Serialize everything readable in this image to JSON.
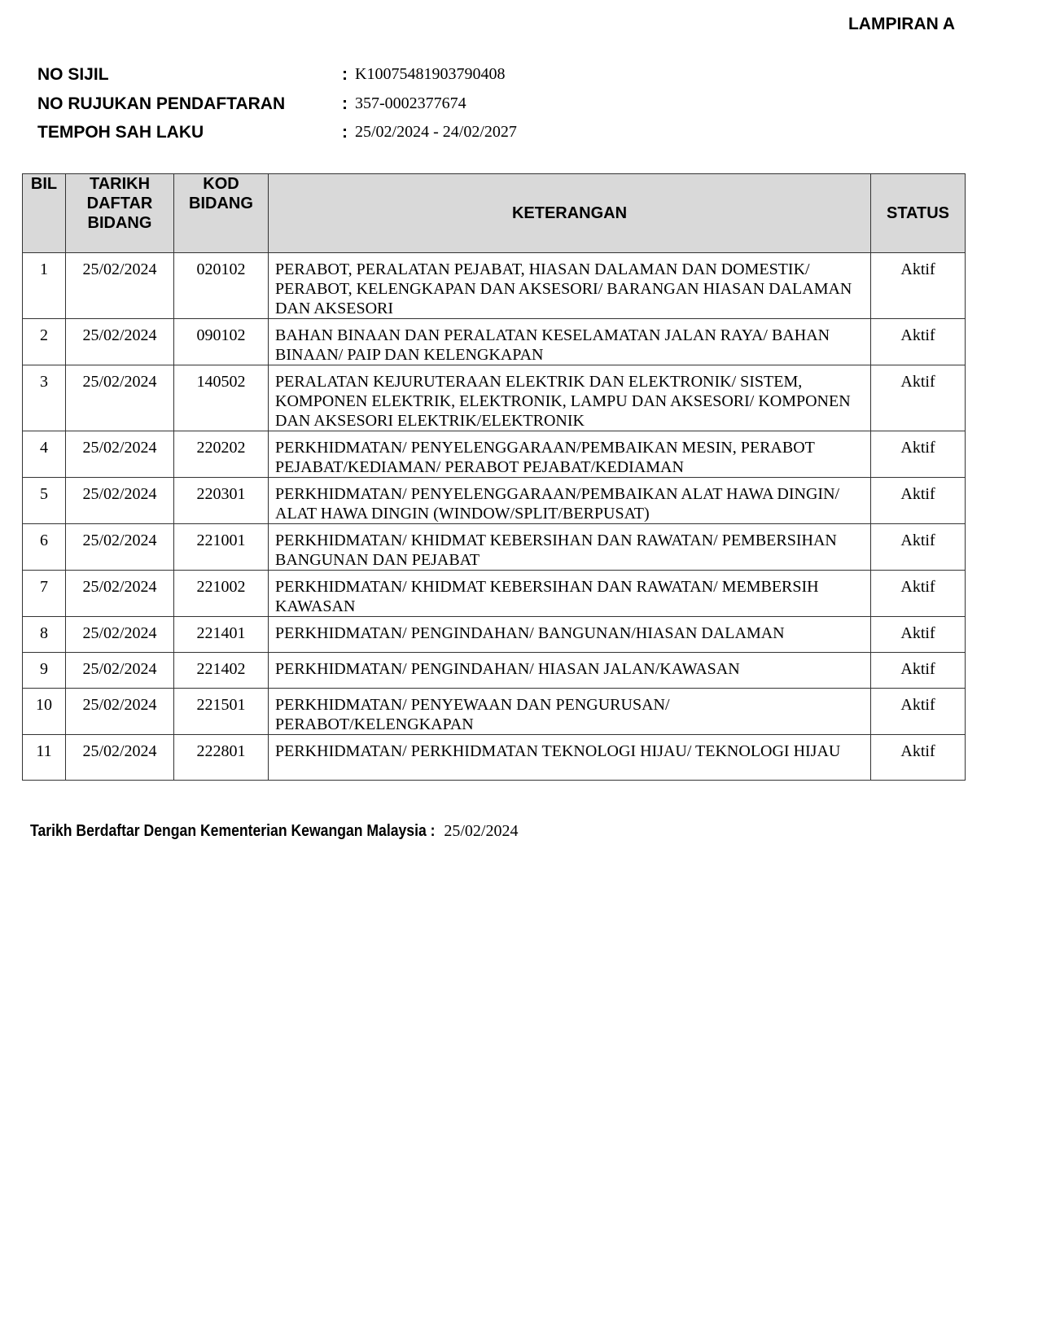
{
  "header": {
    "lampiran": "LAMPIRAN A"
  },
  "meta": [
    {
      "label": "NO SIJIL",
      "value": "K10075481903790408"
    },
    {
      "label": "NO RUJUKAN PENDAFTARAN",
      "value": "357-0002377674"
    },
    {
      "label": "TEMPOH SAH LAKU",
      "value": "25/02/2024 - 24/02/2027"
    }
  ],
  "table": {
    "headers": {
      "bil": "BIL",
      "tarikh": "TARIKH DAFTAR BIDANG",
      "kod": "KOD BIDANG",
      "keterangan": "KETERANGAN",
      "status": "STATUS"
    },
    "rows": [
      {
        "bil": "1",
        "tarikh": "25/02/2024",
        "kod": "020102",
        "keterangan": "PERABOT, PERALATAN PEJABAT, HIASAN DALAMAN DAN DOMESTIK/ PERABOT, KELENGKAPAN DAN AKSESORI/ BARANGAN HIASAN DALAMAN DAN AKSESORI",
        "status": "Aktif"
      },
      {
        "bil": "2",
        "tarikh": "25/02/2024",
        "kod": "090102",
        "keterangan": "BAHAN BINAAN DAN PERALATAN KESELAMATAN JALAN RAYA/ BAHAN BINAAN/ PAIP DAN KELENGKAPAN",
        "status": "Aktif"
      },
      {
        "bil": "3",
        "tarikh": "25/02/2024",
        "kod": "140502",
        "keterangan": "PERALATAN KEJURUTERAAN ELEKTRIK DAN ELEKTRONIK/ SISTEM, KOMPONEN ELEKTRIK, ELEKTRONIK, LAMPU DAN AKSESORI/ KOMPONEN DAN AKSESORI ELEKTRIK/ELEKTRONIK",
        "status": "Aktif"
      },
      {
        "bil": "4",
        "tarikh": "25/02/2024",
        "kod": "220202",
        "keterangan": "PERKHIDMATAN/ PENYELENGGARAAN/PEMBAIKAN MESIN, PERABOT PEJABAT/KEDIAMAN/ PERABOT PEJABAT/KEDIAMAN",
        "status": "Aktif"
      },
      {
        "bil": "5",
        "tarikh": "25/02/2024",
        "kod": "220301",
        "keterangan": "PERKHIDMATAN/ PENYELENGGARAAN/PEMBAIKAN ALAT HAWA DINGIN/ ALAT HAWA DINGIN (WINDOW/SPLIT/BERPUSAT)",
        "status": "Aktif"
      },
      {
        "bil": "6",
        "tarikh": "25/02/2024",
        "kod": "221001",
        "keterangan": "PERKHIDMATAN/ KHIDMAT KEBERSIHAN DAN RAWATAN/ PEMBERSIHAN BANGUNAN DAN PEJABAT",
        "status": "Aktif"
      },
      {
        "bil": "7",
        "tarikh": "25/02/2024",
        "kod": "221002",
        "keterangan": "PERKHIDMATAN/ KHIDMAT KEBERSIHAN DAN RAWATAN/ MEMBERSIH KAWASAN",
        "status": "Aktif"
      },
      {
        "bil": "8",
        "tarikh": "25/02/2024",
        "kod": "221401",
        "keterangan": "PERKHIDMATAN/ PENGINDAHAN/ BANGUNAN/HIASAN DALAMAN",
        "status": "Aktif"
      },
      {
        "bil": "9",
        "tarikh": "25/02/2024",
        "kod": "221402",
        "keterangan": "PERKHIDMATAN/ PENGINDAHAN/ HIASAN JALAN/KAWASAN",
        "status": "Aktif"
      },
      {
        "bil": "10",
        "tarikh": "25/02/2024",
        "kod": "221501",
        "keterangan": "PERKHIDMATAN/ PENYEWAAN DAN PENGURUSAN/ PERABOT/KELENGKAPAN",
        "status": "Aktif"
      },
      {
        "bil": "11",
        "tarikh": "25/02/2024",
        "kod": "222801",
        "keterangan": "PERKHIDMATAN/ PERKHIDMATAN TEKNOLOGI HIJAU/ TEKNOLOGI HIJAU",
        "status": "Aktif"
      }
    ]
  },
  "footer": {
    "label": "Tarikh Berdaftar Dengan Kementerian Kewangan Malaysia :",
    "value": "25/02/2024"
  }
}
